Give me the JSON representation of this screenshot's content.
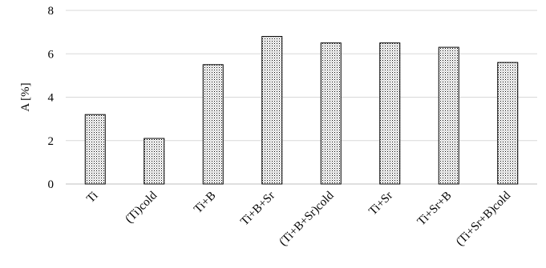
{
  "chart_data": {
    "type": "bar",
    "title": "",
    "xlabel": "",
    "ylabel": "A [%]",
    "ylim": [
      0,
      8
    ],
    "yticks": [
      0,
      2,
      4,
      6,
      8
    ],
    "grid": true,
    "categories": [
      "Ti",
      "(Ti)cold",
      "Ti+B",
      "Ti+B+Sr",
      "(Ti+B+Sr)cold",
      "Ti+Sr",
      "Ti+Sr+B",
      "(Ti+Sr+B)cold"
    ],
    "values": [
      3.2,
      2.1,
      5.5,
      6.8,
      6.5,
      6.5,
      6.3,
      5.6
    ],
    "bar_pattern": "dotted",
    "bar_outline_color": "#000000"
  }
}
